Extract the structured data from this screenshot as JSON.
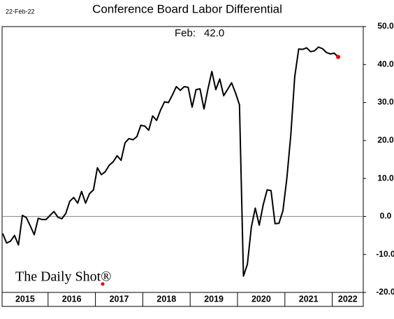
{
  "chart_data": {
    "type": "line",
    "title": "Conference Board Labor Differential",
    "date_note": "22-Feb-22",
    "last_note": "Feb:",
    "last_value_label": "42.0",
    "watermark": "The Daily Shot®",
    "x_labels": [
      "2015",
      "2016",
      "2017",
      "2018",
      "2019",
      "2020",
      "2021",
      "2022"
    ],
    "values": [
      -4.5,
      -7,
      -6.5,
      -5,
      -7.5,
      0.3,
      -0.3,
      -2.5,
      -4.8,
      -0.5,
      -0.8,
      -0.8,
      0.3,
      1.3,
      -0.2,
      -0.6,
      0.8,
      4,
      5,
      3.5,
      6.6,
      3.5,
      6,
      7,
      12.8,
      11,
      11.8,
      13.5,
      14.4,
      16,
      14.8,
      19.4,
      20.5,
      20.2,
      21,
      24,
      23.8,
      22.7,
      26.5,
      25.3,
      28,
      30.2,
      30,
      32,
      34.2,
      33.2,
      34.2,
      34,
      28.8,
      33.4,
      33.6,
      28.3,
      33.5,
      38.2,
      33.4,
      36.2,
      31.8,
      33.5,
      35.2,
      32.5,
      29.4,
      -15.7,
      -12.6,
      -2.8,
      2.2,
      -2.3,
      3,
      7,
      6.8,
      -1.9,
      -1.8,
      1.5,
      10,
      21.5,
      36.8,
      44.1,
      44,
      44.4,
      43.4,
      43.6,
      44.6,
      44.2,
      43.2,
      42.8,
      43,
      42
    ],
    "color": "#000000",
    "last_point_color": "#e8000b",
    "ylim": [
      -20,
      50
    ],
    "yticks": [
      {
        "value": -20,
        "label": "-20.0"
      },
      {
        "value": -10,
        "label": "-10.0"
      },
      {
        "value": 0,
        "label": "0.0"
      },
      {
        "value": 10,
        "label": "10.0"
      },
      {
        "value": 20,
        "label": "20.0"
      },
      {
        "value": 30,
        "label": "30.0"
      },
      {
        "value": 40,
        "label": "40.0"
      },
      {
        "value": 50,
        "label": "50.0"
      }
    ],
    "zero_line": true
  }
}
